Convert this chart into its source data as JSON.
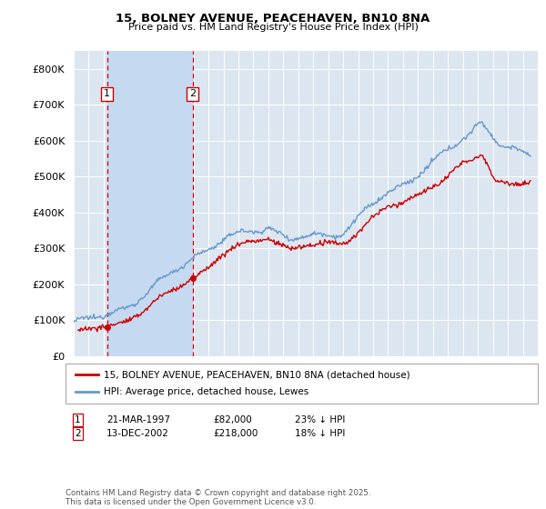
{
  "title": "15, BOLNEY AVENUE, PEACEHAVEN, BN10 8NA",
  "subtitle": "Price paid vs. HM Land Registry's House Price Index (HPI)",
  "ylim": [
    0,
    850000
  ],
  "yticks": [
    0,
    100000,
    200000,
    300000,
    400000,
    500000,
    600000,
    700000,
    800000
  ],
  "ytick_labels": [
    "£0",
    "£100K",
    "£200K",
    "£300K",
    "£400K",
    "£500K",
    "£600K",
    "£700K",
    "£800K"
  ],
  "background_color": "#ffffff",
  "plot_bg_color": "#dce6f1",
  "grid_color": "#ffffff",
  "sale1_date": 1997.22,
  "sale1_price": 82000,
  "sale1_label": "1",
  "sale2_date": 2002.95,
  "sale2_price": 218000,
  "sale2_label": "2",
  "shade_color": "#c5d9f1",
  "dashed_color": "#cc0000",
  "legend_label_red": "15, BOLNEY AVENUE, PEACEHAVEN, BN10 8NA (detached house)",
  "legend_label_blue": "HPI: Average price, detached house, Lewes",
  "footnote": "Contains HM Land Registry data © Crown copyright and database right 2025.\nThis data is licensed under the Open Government Licence v3.0.",
  "table_row1": [
    "1",
    "21-MAR-1997",
    "£82,000",
    "23% ↓ HPI"
  ],
  "table_row2": [
    "2",
    "13-DEC-2002",
    "£218,000",
    "18% ↓ HPI"
  ],
  "red_line_color": "#cc0000",
  "blue_line_color": "#6699cc",
  "box_edge_color": "#cc0000"
}
